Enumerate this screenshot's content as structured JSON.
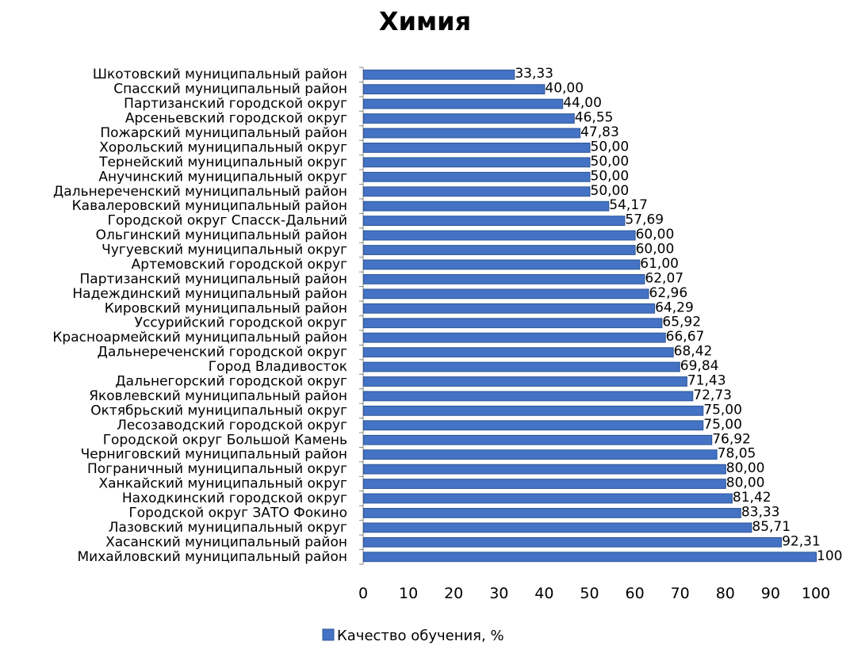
{
  "chart_data": {
    "type": "bar",
    "orientation": "horizontal",
    "title": "Химия",
    "xlim": [
      0,
      100
    ],
    "x_ticks": [
      "0",
      "10",
      "20",
      "30",
      "40",
      "50",
      "60",
      "70",
      "80",
      "90",
      "100"
    ],
    "grid": false,
    "legend_position": "bottom",
    "bar_color": "#4472C4",
    "bar_edge_color": "#2E5597",
    "categories": [
      "Шкотовский муниципальный район",
      "Спасский муниципальный район",
      "Партизанский городской округ",
      "Арсеньевский городской округ",
      "Пожарский муниципальный район",
      "Хорольский муниципальный округ",
      "Тернейский муниципальный округ",
      "Анучинский муниципальный округ",
      "Дальнереченский муниципальный район",
      "Кавалеровский муниципальный район",
      "Городской округ Спасск-Дальний",
      "Ольгинский муниципальный район",
      "Чугуевский муниципальный округ",
      "Артемовский городской округ",
      "Партизанский муниципальный район",
      "Надеждинский муниципальный район",
      "Кировский муниципальный район",
      "Уссурийский городской округ",
      "Красноармейский муниципальный район",
      "Дальнереченский городской округ",
      "Город Владивосток",
      "Дальнегорский городской округ",
      "Яковлевский муниципальный район",
      "Октябрьский муниципальный округ",
      "Лесозаводский городской округ",
      "Городской округ Большой Камень",
      "Черниговский муниципальный район",
      "Пограничный муниципальный округ",
      "Ханкайский муниципальный округ",
      "Находкинский городской округ",
      "Городской округ ЗАТО Фокино",
      "Лазовский муниципальный округ",
      "Хасанский муниципальный район",
      "Михайловский муниципальный район"
    ],
    "series": [
      {
        "name": "Качество обучения, %",
        "values": [
          33.33,
          40.0,
          44.0,
          46.55,
          47.83,
          50.0,
          50.0,
          50.0,
          50.0,
          54.17,
          57.69,
          60.0,
          60.0,
          61.0,
          62.07,
          62.96,
          64.29,
          65.92,
          66.67,
          68.42,
          69.84,
          71.43,
          72.73,
          75.0,
          75.0,
          76.92,
          78.05,
          80.0,
          80.0,
          81.42,
          83.33,
          85.71,
          92.31,
          100
        ],
        "labels": [
          "33,33",
          "40,00",
          "44,00",
          "46,55",
          "47,83",
          "50,00",
          "50,00",
          "50,00",
          "50,00",
          "54,17",
          "57,69",
          "60,00",
          "60,00",
          "61,00",
          "62,07",
          "62,96",
          "64,29",
          "65,92",
          "66,67",
          "68,42",
          "69,84",
          "71,43",
          "72,73",
          "75,00",
          "75,00",
          "76,92",
          "78,05",
          "80,00",
          "80,00",
          "81,42",
          "83,33",
          "85,71",
          "92,31",
          "100"
        ]
      }
    ]
  }
}
